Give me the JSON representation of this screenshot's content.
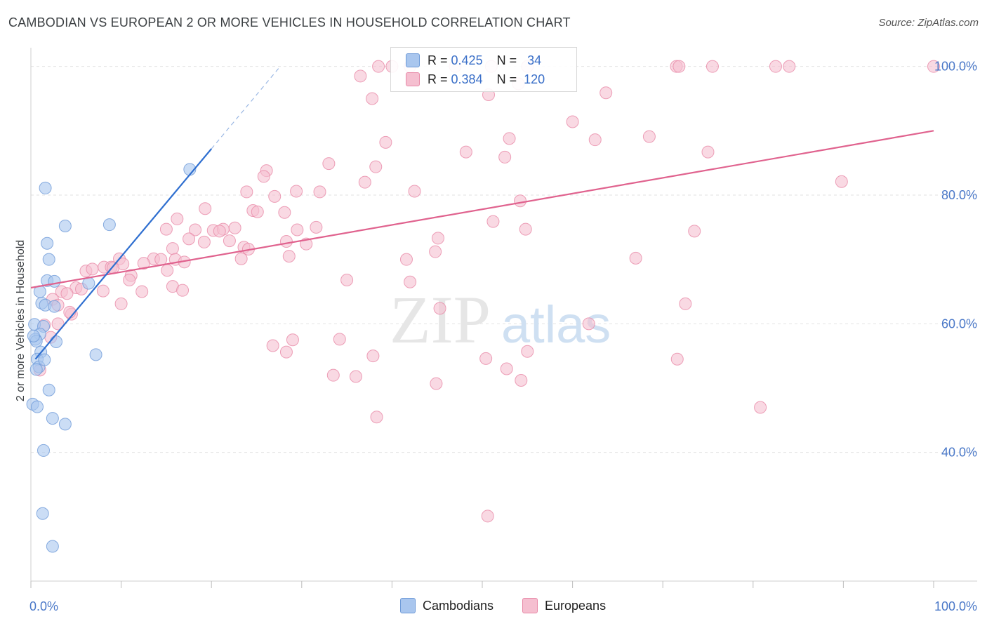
{
  "title": "CAMBODIAN VS EUROPEAN 2 OR MORE VEHICLES IN HOUSEHOLD CORRELATION CHART",
  "source": "Source: ZipAtlas.com",
  "watermark": {
    "zip": "ZIP",
    "atlas": "atlas"
  },
  "legend": {
    "r_label": "R =",
    "n_label": "N =",
    "rows": [
      {
        "name": "Cambodians",
        "r": "0.425",
        "n": "34",
        "color": "#a9c6ee",
        "stroke": "#6e9ad8"
      },
      {
        "name": "Europeans",
        "r": "0.384",
        "n": "120",
        "color": "#f5bfd0",
        "stroke": "#e88aa8"
      }
    ]
  },
  "chart_data": {
    "type": "scatter",
    "title": "CAMBODIAN VS EUROPEAN 2 OR MORE VEHICLES IN HOUSEHOLD CORRELATION CHART",
    "xlabel": "",
    "ylabel": "2 or more Vehicles in Household",
    "xlim": [
      0,
      100
    ],
    "ylim": [
      20,
      104
    ],
    "x_tick_labels": [
      "0.0%",
      "100.0%"
    ],
    "y_ticks": [
      40,
      60,
      80,
      100
    ],
    "y_tick_labels": [
      "40.0%",
      "60.0%",
      "80.0%",
      "100.0%"
    ],
    "grid": true,
    "series": [
      {
        "name": "Cambodians",
        "color": "#a9c6ee",
        "stroke": "#6e9ad8",
        "trend_color": "#2f6fd0",
        "trend": {
          "x0": 0.5,
          "y0": 54.5,
          "x1": 20,
          "y1": 87.2,
          "dash_x1": 27.5,
          "dash_y1": 99.8
        },
        "points": [
          [
            1.6,
            81.1
          ],
          [
            3.8,
            75.2
          ],
          [
            8.7,
            75.4
          ],
          [
            1.8,
            72.5
          ],
          [
            2.0,
            70.0
          ],
          [
            1.8,
            66.7
          ],
          [
            2.6,
            66.6
          ],
          [
            6.4,
            66.3
          ],
          [
            1.0,
            65.0
          ],
          [
            1.2,
            63.2
          ],
          [
            1.6,
            62.9
          ],
          [
            2.6,
            62.7
          ],
          [
            0.4,
            59.9
          ],
          [
            1.4,
            59.6
          ],
          [
            1.0,
            58.4
          ],
          [
            0.5,
            57.6
          ],
          [
            0.6,
            57.3
          ],
          [
            2.8,
            57.2
          ],
          [
            1.1,
            55.6
          ],
          [
            7.2,
            55.2
          ],
          [
            0.7,
            54.5
          ],
          [
            0.9,
            53.3
          ],
          [
            0.6,
            52.9
          ],
          [
            2.0,
            49.7
          ],
          [
            0.2,
            47.5
          ],
          [
            0.7,
            47.1
          ],
          [
            2.4,
            45.3
          ],
          [
            3.8,
            44.4
          ],
          [
            1.4,
            40.3
          ],
          [
            1.3,
            30.5
          ],
          [
            2.4,
            25.4
          ],
          [
            17.6,
            84.0
          ],
          [
            0.3,
            58.1
          ],
          [
            1.5,
            54.4
          ]
        ]
      },
      {
        "name": "Europeans",
        "color": "#f5bfd0",
        "stroke": "#e88aa8",
        "trend_color": "#e0628e",
        "trend": {
          "x0": 0,
          "y0": 65.6,
          "x1": 100,
          "y1": 90.0
        },
        "points": [
          [
            38.5,
            100
          ],
          [
            40.0,
            100
          ],
          [
            42.0,
            100
          ],
          [
            47.0,
            100
          ],
          [
            51.0,
            100
          ],
          [
            55.0,
            100
          ],
          [
            71.5,
            100
          ],
          [
            71.8,
            100
          ],
          [
            75.5,
            100
          ],
          [
            82.5,
            100
          ],
          [
            84.0,
            100
          ],
          [
            100,
            100
          ],
          [
            36.5,
            98.5
          ],
          [
            37.8,
            95.0
          ],
          [
            50.7,
            95.6
          ],
          [
            54.0,
            97.3
          ],
          [
            63.7,
            95.9
          ],
          [
            60.0,
            91.4
          ],
          [
            39.3,
            88.2
          ],
          [
            53.0,
            88.8
          ],
          [
            62.5,
            88.6
          ],
          [
            68.5,
            89.1
          ],
          [
            48.2,
            86.7
          ],
          [
            52.5,
            85.9
          ],
          [
            75.0,
            86.7
          ],
          [
            33.0,
            84.9
          ],
          [
            38.2,
            84.4
          ],
          [
            26.1,
            83.8
          ],
          [
            25.8,
            82.9
          ],
          [
            37.0,
            82.0
          ],
          [
            89.8,
            82.1
          ],
          [
            23.9,
            80.5
          ],
          [
            29.4,
            80.6
          ],
          [
            32.0,
            80.5
          ],
          [
            42.5,
            80.6
          ],
          [
            27.0,
            79.8
          ],
          [
            54.2,
            79.1
          ],
          [
            19.3,
            77.9
          ],
          [
            24.6,
            77.6
          ],
          [
            28.1,
            77.3
          ],
          [
            25.1,
            77.4
          ],
          [
            16.2,
            76.3
          ],
          [
            51.2,
            75.9
          ],
          [
            15.0,
            74.7
          ],
          [
            18.2,
            74.6
          ],
          [
            20.2,
            74.5
          ],
          [
            21.3,
            74.7
          ],
          [
            22.6,
            74.9
          ],
          [
            31.6,
            75.0
          ],
          [
            29.5,
            74.6
          ],
          [
            54.8,
            74.7
          ],
          [
            73.5,
            74.4
          ],
          [
            20.9,
            74.4
          ],
          [
            17.5,
            73.2
          ],
          [
            19.2,
            72.7
          ],
          [
            22.0,
            72.9
          ],
          [
            28.3,
            72.8
          ],
          [
            30.5,
            72.4
          ],
          [
            45.1,
            73.3
          ],
          [
            15.7,
            71.7
          ],
          [
            23.6,
            71.9
          ],
          [
            24.1,
            71.6
          ],
          [
            13.6,
            70.1
          ],
          [
            14.4,
            70.0
          ],
          [
            16.0,
            70.0
          ],
          [
            17.0,
            69.6
          ],
          [
            28.6,
            70.5
          ],
          [
            9.8,
            70.1
          ],
          [
            41.6,
            70.0
          ],
          [
            67.0,
            70.2
          ],
          [
            10.2,
            69.3
          ],
          [
            8.1,
            68.8
          ],
          [
            8.9,
            68.8
          ],
          [
            6.1,
            68.2
          ],
          [
            12.5,
            69.4
          ],
          [
            11.1,
            67.5
          ],
          [
            10.9,
            66.8
          ],
          [
            35.0,
            66.8
          ],
          [
            42.0,
            66.5
          ],
          [
            5.0,
            65.6
          ],
          [
            5.6,
            65.4
          ],
          [
            3.4,
            65.0
          ],
          [
            8.0,
            65.1
          ],
          [
            12.3,
            65.0
          ],
          [
            15.7,
            65.8
          ],
          [
            16.8,
            65.2
          ],
          [
            4.0,
            64.7
          ],
          [
            2.4,
            63.8
          ],
          [
            3.0,
            62.9
          ],
          [
            10.0,
            63.1
          ],
          [
            72.5,
            63.1
          ],
          [
            45.3,
            62.4
          ],
          [
            4.5,
            61.5
          ],
          [
            3.0,
            60.0
          ],
          [
            61.8,
            60.0
          ],
          [
            1.5,
            59.8
          ],
          [
            34.2,
            57.6
          ],
          [
            29.0,
            57.5
          ],
          [
            26.8,
            56.6
          ],
          [
            28.3,
            55.6
          ],
          [
            55.0,
            55.7
          ],
          [
            37.9,
            55.0
          ],
          [
            50.4,
            54.6
          ],
          [
            71.6,
            54.5
          ],
          [
            52.7,
            53.0
          ],
          [
            33.5,
            52.0
          ],
          [
            36.0,
            51.8
          ],
          [
            44.9,
            50.7
          ],
          [
            54.3,
            51.2
          ],
          [
            80.8,
            47.0
          ],
          [
            38.3,
            45.5
          ],
          [
            50.6,
            30.1
          ],
          [
            1.0,
            52.8
          ],
          [
            2.2,
            57.9
          ],
          [
            6.8,
            68.5
          ],
          [
            4.3,
            61.8
          ],
          [
            9.1,
            68.7
          ],
          [
            15.1,
            68.3
          ],
          [
            23.3,
            70.1
          ],
          [
            44.8,
            71.2
          ]
        ]
      }
    ]
  }
}
